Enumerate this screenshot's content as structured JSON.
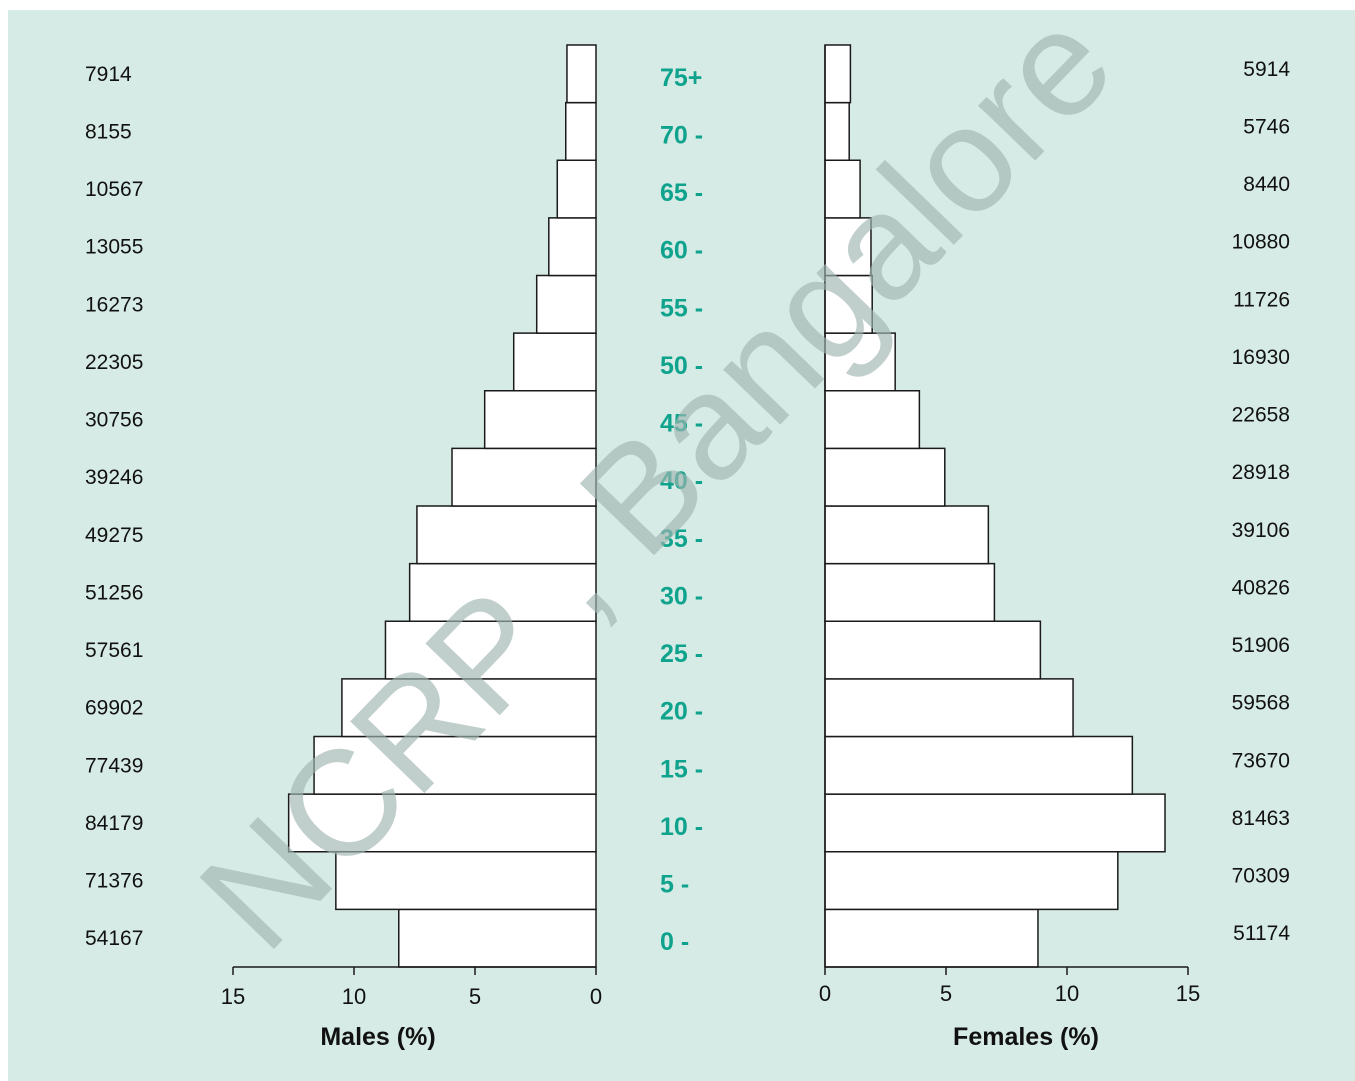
{
  "colors": {
    "background": "#d6ebe5",
    "age_label": "#0fa38d",
    "bar_fill": "#ffffff",
    "bar_stroke": "#1a1a1a",
    "watermark": "#9fb6b0"
  },
  "watermark": "NCRP , Bangalore",
  "chart_data": {
    "type": "bar",
    "subtype": "population-pyramid",
    "orientation": "horizontal",
    "categories": [
      "0 -",
      "5 -",
      "10 -",
      "15 -",
      "20 -",
      "25 -",
      "30 -",
      "35 -",
      "40 -",
      "45 -",
      "50 -",
      "55 -",
      "60 -",
      "65 -",
      "70 -",
      "75+"
    ],
    "series": [
      {
        "name": "Males (%)",
        "values": [
          8.15,
          10.75,
          12.7,
          11.65,
          10.5,
          8.7,
          7.7,
          7.4,
          5.95,
          4.6,
          3.4,
          2.45,
          1.95,
          1.6,
          1.25,
          1.2
        ],
        "counts": [
          "54167",
          "71376",
          "84179",
          "77439",
          "69902",
          "57561",
          "51256",
          "49275",
          "39246",
          "30756",
          "22305",
          "16273",
          "13055",
          "10567",
          "8155",
          "7914"
        ]
      },
      {
        "name": "Females (%)",
        "values": [
          8.8,
          12.1,
          14.05,
          12.7,
          10.25,
          8.9,
          7.0,
          6.75,
          4.95,
          3.9,
          2.9,
          1.95,
          1.9,
          1.45,
          1.0,
          1.05
        ],
        "counts": [
          "51174",
          "70309",
          "81463",
          "73670",
          "59568",
          "51906",
          "40826",
          "39106",
          "28918",
          "22658",
          "16930",
          "11726",
          "10880",
          "8440",
          "5746",
          "5914"
        ]
      }
    ],
    "xlabel_left": "Males (%)",
    "xlabel_right": "Females (%)",
    "xlim": [
      0,
      15
    ],
    "ticks_left": [
      "15",
      "10",
      "5",
      "0"
    ],
    "ticks_right": [
      "0",
      "5",
      "10",
      "15"
    ],
    "grid": false,
    "legend": "none"
  }
}
